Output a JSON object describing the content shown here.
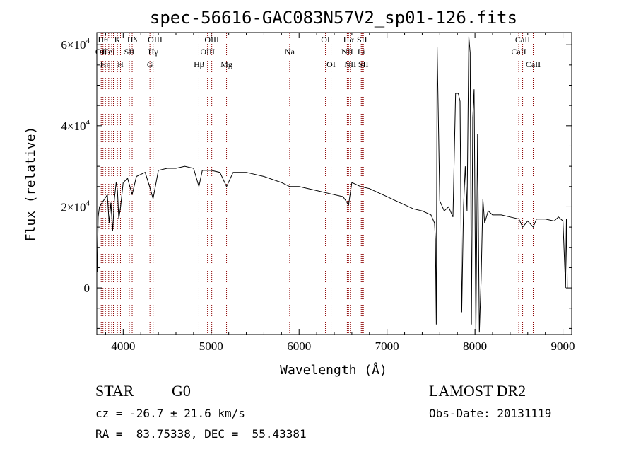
{
  "chart_data": {
    "type": "line",
    "title": "spec-56616-GAC083N57V2_sp01-126.fits",
    "xlabel": "Wavelength (Å)",
    "ylabel": "Flux (relative)",
    "xlim": [
      3700,
      9100
    ],
    "ylim": [
      -11500,
      63000
    ],
    "xticks": [
      4000,
      5000,
      6000,
      7000,
      8000,
      9000
    ],
    "xtick_labels": [
      "4000",
      "5000",
      "6000",
      "7000",
      "8000",
      "9000"
    ],
    "yticks": [
      0,
      20000,
      40000,
      60000
    ],
    "ytick_labels": [
      {
        "mant": "0",
        "exp": ""
      },
      {
        "mant": "2×10",
        "exp": "4"
      },
      {
        "mant": "4×10",
        "exp": "4"
      },
      {
        "mant": "6×10",
        "exp": "4"
      }
    ],
    "grid": false,
    "series": [
      {
        "color": "#000000",
        "x": [
          3705,
          3715,
          3730,
          3760,
          3790,
          3820,
          3840,
          3860,
          3880,
          3900,
          3920,
          3935,
          3950,
          3970,
          4000,
          4050,
          4102,
          4150,
          4200,
          4250,
          4300,
          4340,
          4400,
          4500,
          4600,
          4700,
          4800,
          4861,
          4900,
          5000,
          5100,
          5175,
          5250,
          5400,
          5600,
          5800,
          5893,
          6000,
          6200,
          6400,
          6500,
          6563,
          6600,
          6700,
          6800,
          6900,
          7000,
          7100,
          7200,
          7300,
          7400,
          7500,
          7540,
          7550,
          7560,
          7570,
          7600,
          7650,
          7700,
          7750,
          7780,
          7810,
          7830,
          7850,
          7870,
          7890,
          7910,
          7930,
          7945,
          7960,
          7975,
          7990,
          8010,
          8030,
          8050,
          8070,
          8090,
          8110,
          8150,
          8200,
          8300,
          8400,
          8500,
          8542,
          8600,
          8662,
          8700,
          8800,
          8900,
          8950,
          9000,
          9030,
          9040,
          9050
        ],
        "y": [
          4000,
          17500,
          20000,
          21000,
          22000,
          23000,
          16000,
          21000,
          14000,
          22000,
          26000,
          24000,
          17000,
          20000,
          26000,
          27000,
          23000,
          27500,
          28000,
          28500,
          25000,
          22000,
          29000,
          29500,
          29500,
          30000,
          29500,
          25000,
          29000,
          29000,
          28500,
          25000,
          28500,
          28500,
          27500,
          26000,
          25000,
          25000,
          24000,
          23000,
          22500,
          20500,
          26000,
          25000,
          24500,
          23500,
          22500,
          21500,
          20500,
          19500,
          19000,
          18000,
          16000,
          12000,
          -9000,
          59500,
          21500,
          19000,
          20000,
          17500,
          48000,
          48000,
          46000,
          -6000,
          20000,
          30000,
          19000,
          62000,
          58000,
          -9000,
          42000,
          49000,
          -11500,
          38000,
          -11000,
          2000,
          22000,
          16000,
          19000,
          18000,
          18000,
          17500,
          17000,
          15000,
          16500,
          15000,
          17000,
          17000,
          16500,
          17500,
          16500,
          0,
          17000,
          0
        ]
      }
    ],
    "lines": [
      {
        "x": 3750,
        "label": "OII",
        "row": 1
      },
      {
        "x": 3770,
        "label": "Hθ",
        "row": 0
      },
      {
        "x": 3798,
        "label": "Hη",
        "row": 2
      },
      {
        "x": 3835,
        "label": "HeI",
        "row": 1
      },
      {
        "x": 3869,
        "label": "",
        "row": 1
      },
      {
        "x": 3889,
        "label": "",
        "row": 1
      },
      {
        "x": 3934,
        "label": "K",
        "row": 0
      },
      {
        "x": 3969,
        "label": "H",
        "row": 2
      },
      {
        "x": 4069,
        "label": "SII",
        "row": 1
      },
      {
        "x": 4102,
        "label": "Hδ",
        "row": 0
      },
      {
        "x": 4304,
        "label": "G",
        "row": 2
      },
      {
        "x": 4340,
        "label": "Hγ",
        "row": 1
      },
      {
        "x": 4363,
        "label": "OIII",
        "row": 0
      },
      {
        "x": 4861,
        "label": "Hβ",
        "row": 2
      },
      {
        "x": 4959,
        "label": "OIII",
        "row": 1
      },
      {
        "x": 5007,
        "label": "OIII",
        "row": 0
      },
      {
        "x": 5175,
        "label": "Mg",
        "row": 2
      },
      {
        "x": 5893,
        "label": "Na",
        "row": 1
      },
      {
        "x": 6300,
        "label": "OI",
        "row": 0
      },
      {
        "x": 6364,
        "label": "OI",
        "row": 2
      },
      {
        "x": 6548,
        "label": "NII",
        "row": 1
      },
      {
        "x": 6563,
        "label": "Hα",
        "row": 0
      },
      {
        "x": 6583,
        "label": "NII",
        "row": 2
      },
      {
        "x": 6707,
        "label": "Li",
        "row": 1
      },
      {
        "x": 6716,
        "label": "SII",
        "row": 0
      },
      {
        "x": 6731,
        "label": "SII",
        "row": 2
      },
      {
        "x": 8498,
        "label": "CaII",
        "row": 1
      },
      {
        "x": 8542,
        "label": "CaII",
        "row": 0
      },
      {
        "x": 8662,
        "label": "CaII",
        "row": 2
      }
    ]
  },
  "info": {
    "class_label": "STAR",
    "subclass_label": "G0",
    "survey": "LAMOST DR2",
    "redshift": "cz = -26.7 ± 21.6 km/s",
    "obs_date": "Obs-Date: 20131119",
    "coords": "RA =  83.75338, DEC =  55.43381"
  },
  "colors": {
    "spectrum": "#000000",
    "line_markers": "#8b0000",
    "background": "#ffffff"
  }
}
